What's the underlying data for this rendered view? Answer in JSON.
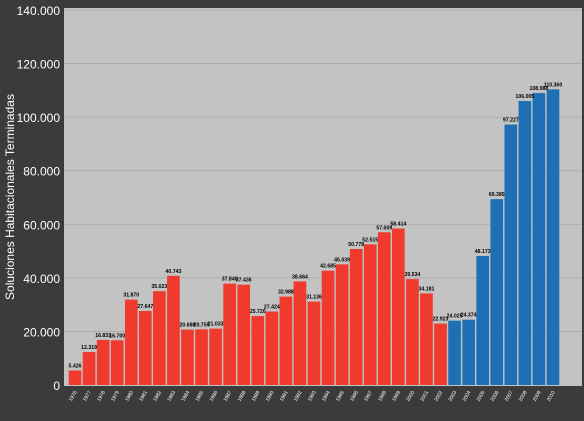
{
  "chart_data": {
    "type": "bar",
    "ylabel": "Soluciones  Habitacionales  Terminadas",
    "ylim": [
      0,
      140000
    ],
    "yticks": [
      0,
      20000,
      40000,
      60000,
      80000,
      100000,
      120000,
      140000
    ],
    "ytick_labels": [
      "0",
      "20.000",
      "40.000",
      "60.000",
      "80.000",
      "100.000",
      "120.000",
      "140.000"
    ],
    "grid": true,
    "colors": {
      "period1": "#ef3a2d",
      "period2": "#1f6fb5",
      "plot_bg": "#c3c3c3",
      "frame_bg": "#3b3b3b",
      "axis_text": "#ffffff",
      "value_text": "#000000"
    },
    "categories": [
      "1976",
      "1977",
      "1978",
      "1979",
      "1980",
      "1981",
      "1982",
      "1983",
      "1984",
      "1985",
      "1986",
      "1987",
      "1988",
      "1989",
      "1990",
      "1991",
      "1992",
      "1993",
      "1994",
      "1995",
      "1996",
      "1997",
      "1998",
      "1999",
      "2000",
      "2001",
      "2002",
      "2003",
      "2004",
      "2005",
      "2006",
      "2007",
      "2008",
      "2009",
      "2010"
    ],
    "values": [
      5426,
      12319,
      16833,
      16700,
      31870,
      27647,
      35023,
      40743,
      20688,
      20759,
      21033,
      37840,
      37436,
      25720,
      27424,
      32988,
      38664,
      31136,
      42685,
      45039,
      50778,
      52515,
      57009,
      58414,
      39534,
      34181,
      22923,
      24025,
      24374,
      48173,
      69385,
      97227,
      106005,
      108988,
      110360
    ],
    "value_labels": [
      "5.426",
      "12.319",
      "16.833",
      "16.700",
      "31.870",
      "27.647",
      "35.023",
      "40.743",
      "20.688",
      "20.759",
      "21.033",
      "37.840",
      "37.436",
      "25.720",
      "27.424",
      "32.988",
      "38.664",
      "31.136",
      "42.685",
      "45.039",
      "50.778",
      "52.515",
      "57.009",
      "58.414",
      "39.534",
      "34.181",
      "22.923",
      "24.025",
      "24.374",
      "48.173",
      "69.385",
      "97.227",
      "106.005",
      "108.988",
      "110.360"
    ],
    "series_color": [
      "period1",
      "period1",
      "period1",
      "period1",
      "period1",
      "period1",
      "period1",
      "period1",
      "period1",
      "period1",
      "period1",
      "period1",
      "period1",
      "period1",
      "period1",
      "period1",
      "period1",
      "period1",
      "period1",
      "period1",
      "period1",
      "period1",
      "period1",
      "period1",
      "period1",
      "period1",
      "period1",
      "period2",
      "period2",
      "period2",
      "period2",
      "period2",
      "period2",
      "period2",
      "period2"
    ]
  }
}
